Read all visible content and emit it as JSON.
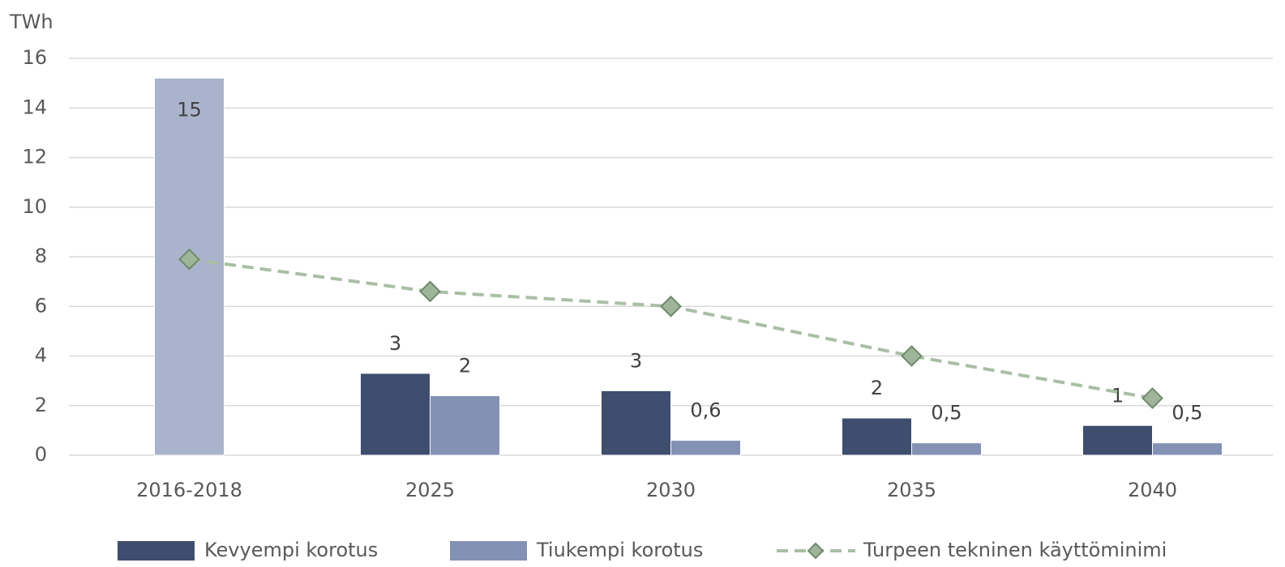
{
  "chart_data": {
    "type": "bar_line",
    "y_axis_label": "TWh",
    "categories": [
      "2016-2018",
      "2025",
      "2030",
      "2035",
      "2040"
    ],
    "series": [
      {
        "name": "Kevyempi korotus",
        "type": "bar",
        "color": "#3f4d6e",
        "values": [
          null,
          3.3,
          2.6,
          1.5,
          1.2
        ],
        "value_labels": [
          null,
          "3",
          "3",
          "2",
          "1"
        ]
      },
      {
        "name": "Tiukempi korotus",
        "type": "bar",
        "color": "#8391b5",
        "colors": [
          "#a9b4cc",
          "#8391b5",
          "#8391b5",
          "#8391b5",
          "#8391b5"
        ],
        "values": [
          15.2,
          2.4,
          0.6,
          0.5,
          0.5
        ],
        "value_labels": [
          "15",
          "2",
          "0,6",
          "0,5",
          "0,5"
        ]
      },
      {
        "name": "Turpeen tekninen käyttöminimi",
        "type": "line",
        "color": "#a9bfa4",
        "marker_color": "#9fb59a",
        "values": [
          7.9,
          6.6,
          6.0,
          4.0,
          2.3
        ]
      }
    ],
    "ylim": [
      0,
      16
    ],
    "yticks": [
      0,
      2,
      4,
      6,
      8,
      10,
      12,
      14,
      16
    ],
    "grid": true,
    "legend": "bottom"
  }
}
